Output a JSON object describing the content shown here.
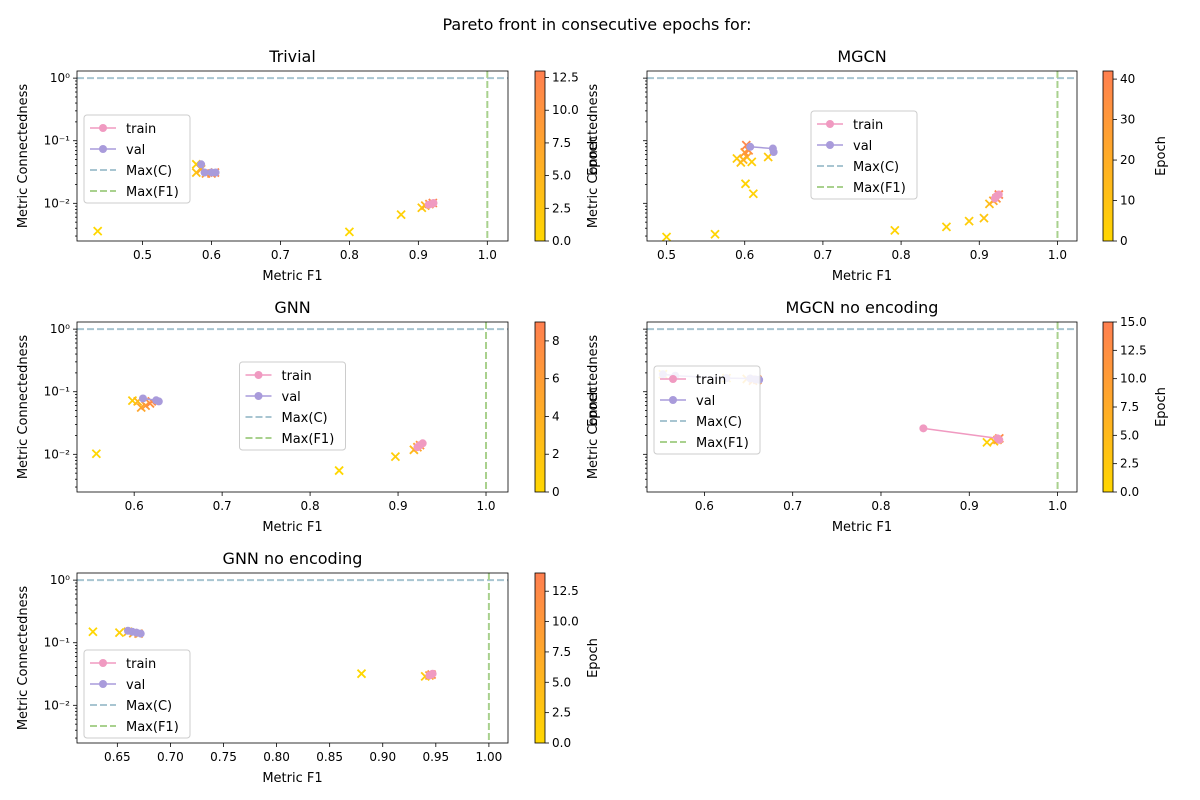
{
  "figure": {
    "suptitle": "Pareto front in consecutive epochs for:"
  },
  "colors": {
    "train": "#f09ac1",
    "val": "#a99bdb",
    "maxC": "#a8c5d1",
    "maxF1": "#a9d18e",
    "epoch_low": "#ffd700",
    "epoch_high": "#ff7f50"
  },
  "chart_data": [
    {
      "type": "scatter",
      "title": "Trivial",
      "xlabel": "Metric F1",
      "ylabel": "Metric Connectedness",
      "yscale": "log",
      "xlim": [
        0.405,
        1.03
      ],
      "ylim": [
        0.0025,
        1.3
      ],
      "xticks": [
        0.5,
        0.6,
        0.7,
        0.8,
        0.9,
        1.0
      ],
      "xtick_labels": [
        "0.5",
        "0.6",
        "0.7",
        "0.8",
        "0.9",
        "1.0"
      ],
      "yticks": [
        0.01,
        0.1,
        1
      ],
      "ytick_labels": [
        "10⁻²",
        "10⁻¹",
        "10⁰"
      ],
      "colorbar": {
        "label": "Epoch",
        "range": [
          0,
          13
        ],
        "ticks": [
          0,
          2.5,
          5,
          7.5,
          10,
          12.5
        ],
        "tick_labels": [
          "0.0",
          "2.5",
          "5.0",
          "7.5",
          "10.0",
          "12.5"
        ]
      },
      "legend": {
        "placement": "center-left",
        "entries": [
          "train",
          "val",
          "Max(C)",
          "Max(F1)"
        ]
      },
      "hlines": [
        {
          "name": "Max(C)",
          "y": 1.0
        }
      ],
      "vlines": [
        {
          "name": "Max(F1)",
          "x": 1.0
        }
      ],
      "series": [
        {
          "name": "train",
          "marker": "o",
          "x": [
            0.915,
            0.92,
            0.922
          ],
          "y": [
            0.0095,
            0.0098,
            0.0101
          ]
        },
        {
          "name": "val",
          "marker": "o",
          "x": [
            0.585,
            0.59,
            0.6,
            0.606
          ],
          "y": [
            0.042,
            0.031,
            0.031,
            0.031
          ]
        }
      ],
      "epoch_points": [
        {
          "x": 0.435,
          "y": 0.0036,
          "epoch": 0
        },
        {
          "x": 0.8,
          "y": 0.0035,
          "epoch": 0
        },
        {
          "x": 0.875,
          "y": 0.0066,
          "epoch": 1
        },
        {
          "x": 0.905,
          "y": 0.0085,
          "epoch": 2
        },
        {
          "x": 0.91,
          "y": 0.0092,
          "epoch": 5
        },
        {
          "x": 0.916,
          "y": 0.0097,
          "epoch": 9
        },
        {
          "x": 0.921,
          "y": 0.0101,
          "epoch": 12
        },
        {
          "x": 0.578,
          "y": 0.042,
          "epoch": 1
        },
        {
          "x": 0.578,
          "y": 0.031,
          "epoch": 3
        },
        {
          "x": 0.585,
          "y": 0.035,
          "epoch": 6
        },
        {
          "x": 0.592,
          "y": 0.03,
          "epoch": 8
        },
        {
          "x": 0.6,
          "y": 0.03,
          "epoch": 11
        },
        {
          "x": 0.605,
          "y": 0.031,
          "epoch": 12
        }
      ]
    },
    {
      "type": "scatter",
      "title": "MGCN",
      "xlabel": "Metric F1",
      "ylabel": "Metric Connectedness",
      "yscale": "log",
      "xlim": [
        0.475,
        1.025
      ],
      "ylim": [
        0.0025,
        1.3
      ],
      "xticks": [
        0.5,
        0.6,
        0.7,
        0.8,
        0.9,
        1.0
      ],
      "xtick_labels": [
        "0.5",
        "0.6",
        "0.7",
        "0.8",
        "0.9",
        "1.0"
      ],
      "yticks": [
        0.01,
        0.1,
        1
      ],
      "ytick_labels": [
        "",
        "",
        ""
      ],
      "colorbar": {
        "label": "Epoch",
        "range": [
          0,
          42
        ],
        "ticks": [
          0,
          10,
          20,
          30,
          40
        ],
        "tick_labels": [
          "0",
          "10",
          "20",
          "30",
          "40"
        ]
      },
      "legend": {
        "placement": "top-center",
        "entries": [
          "train",
          "val",
          "Max(C)",
          "Max(F1)"
        ]
      },
      "hlines": [
        {
          "name": "Max(C)",
          "y": 1.0
        }
      ],
      "vlines": [
        {
          "name": "Max(F1)",
          "x": 1.0
        }
      ],
      "series": [
        {
          "name": "train",
          "marker": "o",
          "x": [
            0.92,
            0.922,
            0.925
          ],
          "y": [
            0.012,
            0.013,
            0.0138
          ]
        },
        {
          "name": "val",
          "marker": "o",
          "x": [
            0.607,
            0.636,
            0.637
          ],
          "y": [
            0.08,
            0.075,
            0.066
          ]
        }
      ],
      "epoch_points": [
        {
          "x": 0.5,
          "y": 0.0029,
          "epoch": 0
        },
        {
          "x": 0.562,
          "y": 0.0032,
          "epoch": 1
        },
        {
          "x": 0.792,
          "y": 0.0037,
          "epoch": 2
        },
        {
          "x": 0.858,
          "y": 0.0042,
          "epoch": 3
        },
        {
          "x": 0.887,
          "y": 0.0052,
          "epoch": 5
        },
        {
          "x": 0.906,
          "y": 0.0058,
          "epoch": 8
        },
        {
          "x": 0.913,
          "y": 0.0098,
          "epoch": 12
        },
        {
          "x": 0.918,
          "y": 0.011,
          "epoch": 22
        },
        {
          "x": 0.922,
          "y": 0.012,
          "epoch": 32
        },
        {
          "x": 0.925,
          "y": 0.0138,
          "epoch": 40
        },
        {
          "x": 0.601,
          "y": 0.0205,
          "epoch": 2
        },
        {
          "x": 0.611,
          "y": 0.0142,
          "epoch": 3
        },
        {
          "x": 0.59,
          "y": 0.052,
          "epoch": 5
        },
        {
          "x": 0.595,
          "y": 0.045,
          "epoch": 8
        },
        {
          "x": 0.598,
          "y": 0.05,
          "epoch": 14
        },
        {
          "x": 0.603,
          "y": 0.055,
          "epoch": 20
        },
        {
          "x": 0.6,
          "y": 0.065,
          "epoch": 28
        },
        {
          "x": 0.605,
          "y": 0.07,
          "epoch": 34
        },
        {
          "x": 0.602,
          "y": 0.085,
          "epoch": 38
        },
        {
          "x": 0.609,
          "y": 0.046,
          "epoch": 4
        },
        {
          "x": 0.63,
          "y": 0.055,
          "epoch": 6
        }
      ]
    },
    {
      "type": "scatter",
      "title": "GNN",
      "xlabel": "Metric F1",
      "ylabel": "Metric Connectedness",
      "yscale": "log",
      "xlim": [
        0.535,
        1.025
      ],
      "ylim": [
        0.0025,
        1.3
      ],
      "xticks": [
        0.6,
        0.7,
        0.8,
        0.9,
        1.0
      ],
      "xtick_labels": [
        "0.6",
        "0.7",
        "0.8",
        "0.9",
        "1.0"
      ],
      "yticks": [
        0.01,
        0.1,
        1
      ],
      "ytick_labels": [
        "10⁻²",
        "10⁻¹",
        "10⁰"
      ],
      "colorbar": {
        "label": "Epoch",
        "range": [
          0,
          9
        ],
        "ticks": [
          0,
          2,
          4,
          6,
          8
        ],
        "tick_labels": [
          "0",
          "2",
          "4",
          "6",
          "8"
        ]
      },
      "legend": {
        "placement": "center",
        "entries": [
          "train",
          "val",
          "Max(C)",
          "Max(F1)"
        ]
      },
      "hlines": [
        {
          "name": "Max(C)",
          "y": 1.0
        }
      ],
      "vlines": [
        {
          "name": "Max(F1)",
          "x": 1.0
        }
      ],
      "series": [
        {
          "name": "train",
          "marker": "o",
          "x": [
            0.922,
            0.925,
            0.928
          ],
          "y": [
            0.013,
            0.014,
            0.015
          ]
        },
        {
          "name": "val",
          "marker": "o",
          "x": [
            0.61,
            0.625,
            0.628
          ],
          "y": [
            0.078,
            0.073,
            0.07
          ]
        }
      ],
      "epoch_points": [
        {
          "x": 0.557,
          "y": 0.0102,
          "epoch": 0
        },
        {
          "x": 0.833,
          "y": 0.0055,
          "epoch": 0
        },
        {
          "x": 0.897,
          "y": 0.0092,
          "epoch": 1
        },
        {
          "x": 0.918,
          "y": 0.0118,
          "epoch": 3
        },
        {
          "x": 0.922,
          "y": 0.013,
          "epoch": 5
        },
        {
          "x": 0.925,
          "y": 0.014,
          "epoch": 7
        },
        {
          "x": 0.598,
          "y": 0.072,
          "epoch": 1
        },
        {
          "x": 0.604,
          "y": 0.07,
          "epoch": 3
        },
        {
          "x": 0.608,
          "y": 0.056,
          "epoch": 5
        },
        {
          "x": 0.613,
          "y": 0.06,
          "epoch": 6
        },
        {
          "x": 0.618,
          "y": 0.065,
          "epoch": 7
        },
        {
          "x": 0.62,
          "y": 0.07,
          "epoch": 8
        }
      ]
    },
    {
      "type": "scatter",
      "title": "MGCN no encoding",
      "xlabel": "Metric F1",
      "ylabel": "Metric Connectedness",
      "yscale": "log",
      "xlim": [
        0.535,
        1.022
      ],
      "ylim": [
        0.0025,
        1.3
      ],
      "xticks": [
        0.6,
        0.7,
        0.8,
        0.9,
        1.0
      ],
      "xtick_labels": [
        "0.6",
        "0.7",
        "0.8",
        "0.9",
        "1.0"
      ],
      "yticks": [
        0.01,
        0.1,
        1
      ],
      "ytick_labels": [
        "",
        "",
        ""
      ],
      "colorbar": {
        "label": "Epoch",
        "range": [
          0,
          15
        ],
        "ticks": [
          0,
          2.5,
          5,
          7.5,
          10,
          12.5,
          15
        ],
        "tick_labels": [
          "0.0",
          "2.5",
          "5.0",
          "7.5",
          "10.0",
          "12.5",
          "15.0"
        ]
      },
      "legend": {
        "placement": "center-left",
        "entries": [
          "train",
          "val",
          "Max(C)",
          "Max(F1)"
        ]
      },
      "hlines": [
        {
          "name": "Max(C)",
          "y": 1.0
        }
      ],
      "vlines": [
        {
          "name": "Max(F1)",
          "x": 1.0
        }
      ],
      "series": [
        {
          "name": "train",
          "marker": "o",
          "x": [
            0.848,
            0.932,
            0.934
          ],
          "y": [
            0.026,
            0.018,
            0.017
          ]
        },
        {
          "name": "val",
          "marker": "o",
          "x": [
            0.553,
            0.567,
            0.625,
            0.652,
            0.658,
            0.662
          ],
          "y": [
            0.19,
            0.18,
            0.165,
            0.163,
            0.157,
            0.155
          ]
        }
      ],
      "epoch_points": [
        {
          "x": 0.553,
          "y": 0.19,
          "epoch": 1
        },
        {
          "x": 0.625,
          "y": 0.165,
          "epoch": 3
        },
        {
          "x": 0.648,
          "y": 0.16,
          "epoch": 6
        },
        {
          "x": 0.655,
          "y": 0.15,
          "epoch": 9
        },
        {
          "x": 0.66,
          "y": 0.155,
          "epoch": 12
        },
        {
          "x": 0.92,
          "y": 0.0155,
          "epoch": 1
        },
        {
          "x": 0.928,
          "y": 0.0162,
          "epoch": 3
        },
        {
          "x": 0.932,
          "y": 0.017,
          "epoch": 8
        },
        {
          "x": 0.934,
          "y": 0.018,
          "epoch": 13
        }
      ]
    },
    {
      "type": "scatter",
      "title": "GNN no encoding",
      "xlabel": "Metric F1",
      "ylabel": "Metric Connectedness",
      "yscale": "log",
      "xlim": [
        0.612,
        1.018
      ],
      "ylim": [
        0.0025,
        1.3
      ],
      "xticks": [
        0.65,
        0.7,
        0.75,
        0.8,
        0.85,
        0.9,
        0.95,
        1.0
      ],
      "xtick_labels": [
        "0.65",
        "0.70",
        "0.75",
        "0.80",
        "0.85",
        "0.90",
        "0.95",
        "1.00"
      ],
      "yticks": [
        0.01,
        0.1,
        1
      ],
      "ytick_labels": [
        "10⁻²",
        "10⁻¹",
        "10⁰"
      ],
      "colorbar": {
        "label": "Epoch",
        "range": [
          0,
          14
        ],
        "ticks": [
          0,
          2.5,
          5,
          7.5,
          10,
          12.5
        ],
        "tick_labels": [
          "0.0",
          "2.5",
          "5.0",
          "7.5",
          "10.0",
          "12.5"
        ]
      },
      "legend": {
        "placement": "lower-left",
        "entries": [
          "train",
          "val",
          "Max(C)",
          "Max(F1)"
        ]
      },
      "hlines": [
        {
          "name": "Max(C)",
          "y": 1.0
        }
      ],
      "vlines": [
        {
          "name": "Max(F1)",
          "x": 1.0
        }
      ],
      "series": [
        {
          "name": "train",
          "marker": "o",
          "x": [
            0.944,
            0.946,
            0.947
          ],
          "y": [
            0.03,
            0.031,
            0.032
          ]
        },
        {
          "name": "val",
          "marker": "o",
          "x": [
            0.66,
            0.664,
            0.668,
            0.672
          ],
          "y": [
            0.155,
            0.15,
            0.145,
            0.14
          ]
        }
      ],
      "epoch_points": [
        {
          "x": 0.627,
          "y": 0.15,
          "epoch": 0
        },
        {
          "x": 0.652,
          "y": 0.145,
          "epoch": 1
        },
        {
          "x": 0.66,
          "y": 0.15,
          "epoch": 4
        },
        {
          "x": 0.665,
          "y": 0.142,
          "epoch": 7
        },
        {
          "x": 0.67,
          "y": 0.14,
          "epoch": 10
        },
        {
          "x": 0.88,
          "y": 0.032,
          "epoch": 0
        },
        {
          "x": 0.94,
          "y": 0.029,
          "epoch": 2
        },
        {
          "x": 0.944,
          "y": 0.03,
          "epoch": 8
        },
        {
          "x": 0.946,
          "y": 0.031,
          "epoch": 12
        }
      ]
    }
  ]
}
